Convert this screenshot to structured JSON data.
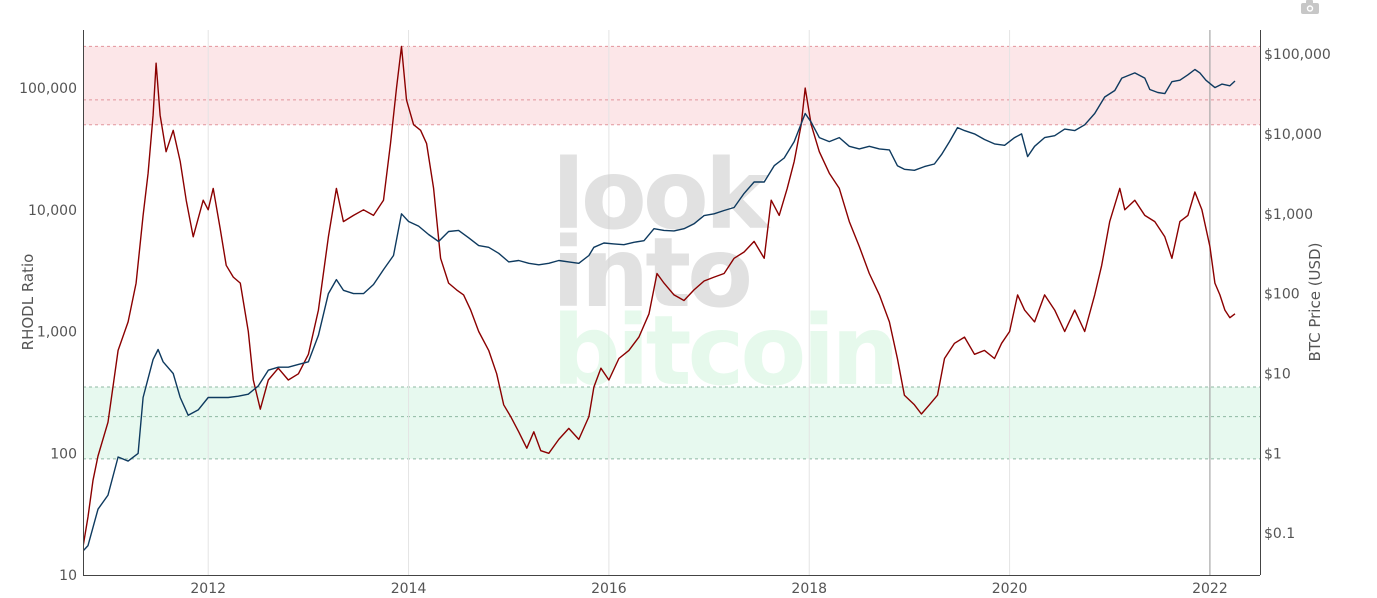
{
  "toolbar": {
    "camera_icon": "camera-icon"
  },
  "watermark": {
    "line1": "look",
    "line2": "into",
    "line3": "bitcoin"
  },
  "chart_data": {
    "type": "line",
    "title": "",
    "x_ticks": [
      "2012",
      "2014",
      "2016",
      "2018",
      "2020",
      "2022"
    ],
    "x_range": [
      2010.75,
      2022.5
    ],
    "left_axis": {
      "title": "RHODL Ratio",
      "scale": "log",
      "range": [
        10,
        300000
      ],
      "ticks": [
        {
          "v": 10,
          "label": "10"
        },
        {
          "v": 100,
          "label": "100"
        },
        {
          "v": 1000,
          "label": "1,000"
        },
        {
          "v": 10000,
          "label": "10,000"
        },
        {
          "v": 100000,
          "label": "100,000"
        }
      ]
    },
    "right_axis": {
      "title": "BTC Price (USD)",
      "scale": "log",
      "range": [
        0.03,
        200000
      ],
      "ticks": [
        {
          "v": 0.1,
          "label": "$0.1"
        },
        {
          "v": 1,
          "label": "$1"
        },
        {
          "v": 10,
          "label": "$10"
        },
        {
          "v": 100,
          "label": "$100"
        },
        {
          "v": 1000,
          "label": "$1,000"
        },
        {
          "v": 10000,
          "label": "$10,000"
        },
        {
          "v": 100000,
          "label": "$100,000"
        }
      ]
    },
    "bands": [
      {
        "name": "",
        "axis": "left",
        "from": 50000,
        "to": 220000,
        "color": "#f9c7cb",
        "mid": 80000
      },
      {
        "name": "",
        "axis": "left",
        "from": 90,
        "to": 350,
        "color": "#c9f1dc",
        "mid": 200
      }
    ],
    "vertical_line": {
      "x": 2022.0
    },
    "series": [
      {
        "name": "",
        "axis": "left",
        "color": "#8b0000",
        "points": [
          [
            2010.75,
            17
          ],
          [
            2010.8,
            30
          ],
          [
            2010.85,
            60
          ],
          [
            2010.9,
            95
          ],
          [
            2011.0,
            180
          ],
          [
            2011.1,
            700
          ],
          [
            2011.2,
            1200
          ],
          [
            2011.28,
            2500
          ],
          [
            2011.35,
            9000
          ],
          [
            2011.4,
            20000
          ],
          [
            2011.45,
            60000
          ],
          [
            2011.48,
            160000
          ],
          [
            2011.52,
            60000
          ],
          [
            2011.58,
            30000
          ],
          [
            2011.65,
            45000
          ],
          [
            2011.72,
            25000
          ],
          [
            2011.78,
            12000
          ],
          [
            2011.85,
            6000
          ],
          [
            2011.95,
            12000
          ],
          [
            2012.0,
            10000
          ],
          [
            2012.05,
            15000
          ],
          [
            2012.12,
            7000
          ],
          [
            2012.18,
            3500
          ],
          [
            2012.25,
            2800
          ],
          [
            2012.32,
            2500
          ],
          [
            2012.4,
            1000
          ],
          [
            2012.45,
            400
          ],
          [
            2012.52,
            230
          ],
          [
            2012.6,
            400
          ],
          [
            2012.7,
            500
          ],
          [
            2012.8,
            400
          ],
          [
            2012.9,
            450
          ],
          [
            2013.0,
            650
          ],
          [
            2013.1,
            1500
          ],
          [
            2013.2,
            6000
          ],
          [
            2013.28,
            15000
          ],
          [
            2013.35,
            8000
          ],
          [
            2013.45,
            9000
          ],
          [
            2013.55,
            10000
          ],
          [
            2013.65,
            9000
          ],
          [
            2013.75,
            12000
          ],
          [
            2013.82,
            35000
          ],
          [
            2013.88,
            100000
          ],
          [
            2013.93,
            220000
          ],
          [
            2013.98,
            80000
          ],
          [
            2014.05,
            50000
          ],
          [
            2014.12,
            45000
          ],
          [
            2014.18,
            35000
          ],
          [
            2014.25,
            15000
          ],
          [
            2014.32,
            4000
          ],
          [
            2014.4,
            2500
          ],
          [
            2014.48,
            2200
          ],
          [
            2014.55,
            2000
          ],
          [
            2014.62,
            1500
          ],
          [
            2014.7,
            1000
          ],
          [
            2014.8,
            700
          ],
          [
            2014.88,
            450
          ],
          [
            2014.95,
            250
          ],
          [
            2015.02,
            200
          ],
          [
            2015.1,
            150
          ],
          [
            2015.18,
            110
          ],
          [
            2015.25,
            150
          ],
          [
            2015.32,
            105
          ],
          [
            2015.4,
            100
          ],
          [
            2015.5,
            130
          ],
          [
            2015.6,
            160
          ],
          [
            2015.7,
            130
          ],
          [
            2015.8,
            200
          ],
          [
            2015.85,
            350
          ],
          [
            2015.92,
            500
          ],
          [
            2016.0,
            400
          ],
          [
            2016.1,
            600
          ],
          [
            2016.2,
            700
          ],
          [
            2016.3,
            900
          ],
          [
            2016.4,
            1400
          ],
          [
            2016.48,
            3000
          ],
          [
            2016.55,
            2500
          ],
          [
            2016.65,
            2000
          ],
          [
            2016.75,
            1800
          ],
          [
            2016.85,
            2200
          ],
          [
            2016.95,
            2600
          ],
          [
            2017.05,
            2800
          ],
          [
            2017.15,
            3000
          ],
          [
            2017.25,
            4000
          ],
          [
            2017.35,
            4500
          ],
          [
            2017.45,
            5500
          ],
          [
            2017.55,
            4000
          ],
          [
            2017.62,
            12000
          ],
          [
            2017.7,
            9000
          ],
          [
            2017.78,
            15000
          ],
          [
            2017.85,
            25000
          ],
          [
            2017.92,
            50000
          ],
          [
            2017.96,
            100000
          ],
          [
            2018.02,
            50000
          ],
          [
            2018.1,
            30000
          ],
          [
            2018.2,
            20000
          ],
          [
            2018.3,
            15000
          ],
          [
            2018.4,
            8000
          ],
          [
            2018.5,
            5000
          ],
          [
            2018.6,
            3000
          ],
          [
            2018.7,
            2000
          ],
          [
            2018.8,
            1200
          ],
          [
            2018.88,
            600
          ],
          [
            2018.95,
            300
          ],
          [
            2019.05,
            250
          ],
          [
            2019.12,
            210
          ],
          [
            2019.2,
            250
          ],
          [
            2019.28,
            300
          ],
          [
            2019.35,
            600
          ],
          [
            2019.45,
            800
          ],
          [
            2019.55,
            900
          ],
          [
            2019.65,
            650
          ],
          [
            2019.75,
            700
          ],
          [
            2019.85,
            600
          ],
          [
            2019.92,
            800
          ],
          [
            2020.0,
            1000
          ],
          [
            2020.08,
            2000
          ],
          [
            2020.15,
            1500
          ],
          [
            2020.25,
            1200
          ],
          [
            2020.35,
            2000
          ],
          [
            2020.45,
            1500
          ],
          [
            2020.55,
            1000
          ],
          [
            2020.65,
            1500
          ],
          [
            2020.75,
            1000
          ],
          [
            2020.85,
            2000
          ],
          [
            2020.92,
            3500
          ],
          [
            2021.0,
            8000
          ],
          [
            2021.1,
            15000
          ],
          [
            2021.15,
            10000
          ],
          [
            2021.25,
            12000
          ],
          [
            2021.35,
            9000
          ],
          [
            2021.45,
            8000
          ],
          [
            2021.55,
            6000
          ],
          [
            2021.62,
            4000
          ],
          [
            2021.7,
            8000
          ],
          [
            2021.78,
            9000
          ],
          [
            2021.85,
            14000
          ],
          [
            2021.92,
            10000
          ],
          [
            2022.0,
            5000
          ],
          [
            2022.05,
            2500
          ],
          [
            2022.1,
            2000
          ],
          [
            2022.15,
            1500
          ],
          [
            2022.2,
            1300
          ],
          [
            2022.25,
            1400
          ]
        ]
      },
      {
        "name": "",
        "axis": "right",
        "color": "#0e3a5f",
        "points": [
          [
            2010.75,
            0.06
          ],
          [
            2010.8,
            0.07
          ],
          [
            2010.9,
            0.2
          ],
          [
            2011.0,
            0.3
          ],
          [
            2011.1,
            0.9
          ],
          [
            2011.2,
            0.8
          ],
          [
            2011.3,
            1.0
          ],
          [
            2011.35,
            5.0
          ],
          [
            2011.45,
            15
          ],
          [
            2011.5,
            20
          ],
          [
            2011.55,
            14
          ],
          [
            2011.65,
            10
          ],
          [
            2011.72,
            5
          ],
          [
            2011.8,
            3
          ],
          [
            2011.9,
            3.5
          ],
          [
            2012.0,
            5
          ],
          [
            2012.1,
            5
          ],
          [
            2012.2,
            5
          ],
          [
            2012.3,
            5.2
          ],
          [
            2012.4,
            5.5
          ],
          [
            2012.5,
            7
          ],
          [
            2012.6,
            11
          ],
          [
            2012.7,
            12
          ],
          [
            2012.8,
            12
          ],
          [
            2012.9,
            13
          ],
          [
            2013.0,
            14
          ],
          [
            2013.1,
            30
          ],
          [
            2013.2,
            100
          ],
          [
            2013.28,
            150
          ],
          [
            2013.35,
            110
          ],
          [
            2013.45,
            100
          ],
          [
            2013.55,
            100
          ],
          [
            2013.65,
            130
          ],
          [
            2013.75,
            200
          ],
          [
            2013.85,
            300
          ],
          [
            2013.93,
            1000
          ],
          [
            2014.0,
            800
          ],
          [
            2014.1,
            700
          ],
          [
            2014.2,
            550
          ],
          [
            2014.3,
            450
          ],
          [
            2014.4,
            600
          ],
          [
            2014.5,
            620
          ],
          [
            2014.6,
            500
          ],
          [
            2014.7,
            400
          ],
          [
            2014.8,
            380
          ],
          [
            2014.9,
            320
          ],
          [
            2015.0,
            250
          ],
          [
            2015.1,
            260
          ],
          [
            2015.2,
            240
          ],
          [
            2015.3,
            230
          ],
          [
            2015.4,
            240
          ],
          [
            2015.5,
            260
          ],
          [
            2015.6,
            250
          ],
          [
            2015.7,
            240
          ],
          [
            2015.8,
            300
          ],
          [
            2015.85,
            380
          ],
          [
            2015.95,
            430
          ],
          [
            2016.05,
            420
          ],
          [
            2016.15,
            410
          ],
          [
            2016.25,
            440
          ],
          [
            2016.35,
            460
          ],
          [
            2016.45,
            650
          ],
          [
            2016.55,
            620
          ],
          [
            2016.65,
            610
          ],
          [
            2016.75,
            650
          ],
          [
            2016.85,
            750
          ],
          [
            2016.95,
            950
          ],
          [
            2017.05,
            1000
          ],
          [
            2017.15,
            1100
          ],
          [
            2017.25,
            1200
          ],
          [
            2017.35,
            1800
          ],
          [
            2017.45,
            2500
          ],
          [
            2017.55,
            2500
          ],
          [
            2017.65,
            4000
          ],
          [
            2017.75,
            5000
          ],
          [
            2017.85,
            8000
          ],
          [
            2017.96,
            18000
          ],
          [
            2018.02,
            14000
          ],
          [
            2018.1,
            9000
          ],
          [
            2018.2,
            8000
          ],
          [
            2018.3,
            9000
          ],
          [
            2018.4,
            7000
          ],
          [
            2018.5,
            6500
          ],
          [
            2018.6,
            7000
          ],
          [
            2018.7,
            6500
          ],
          [
            2018.8,
            6300
          ],
          [
            2018.88,
            4000
          ],
          [
            2018.95,
            3600
          ],
          [
            2019.05,
            3500
          ],
          [
            2019.15,
            3900
          ],
          [
            2019.25,
            4200
          ],
          [
            2019.32,
            5500
          ],
          [
            2019.4,
            8000
          ],
          [
            2019.48,
            12000
          ],
          [
            2019.55,
            11000
          ],
          [
            2019.65,
            10000
          ],
          [
            2019.75,
            8500
          ],
          [
            2019.85,
            7500
          ],
          [
            2019.95,
            7200
          ],
          [
            2020.05,
            9000
          ],
          [
            2020.12,
            10000
          ],
          [
            2020.18,
            5200
          ],
          [
            2020.25,
            7000
          ],
          [
            2020.35,
            9000
          ],
          [
            2020.45,
            9500
          ],
          [
            2020.55,
            11500
          ],
          [
            2020.65,
            11000
          ],
          [
            2020.75,
            13000
          ],
          [
            2020.85,
            18000
          ],
          [
            2020.95,
            29000
          ],
          [
            2021.05,
            35000
          ],
          [
            2021.12,
            50000
          ],
          [
            2021.25,
            58000
          ],
          [
            2021.35,
            50000
          ],
          [
            2021.4,
            36000
          ],
          [
            2021.48,
            33000
          ],
          [
            2021.55,
            32000
          ],
          [
            2021.62,
            45000
          ],
          [
            2021.7,
            47000
          ],
          [
            2021.78,
            55000
          ],
          [
            2021.85,
            64000
          ],
          [
            2021.9,
            58000
          ],
          [
            2021.96,
            47000
          ],
          [
            2022.05,
            38000
          ],
          [
            2022.12,
            42000
          ],
          [
            2022.2,
            40000
          ],
          [
            2022.25,
            46000
          ]
        ]
      }
    ]
  }
}
